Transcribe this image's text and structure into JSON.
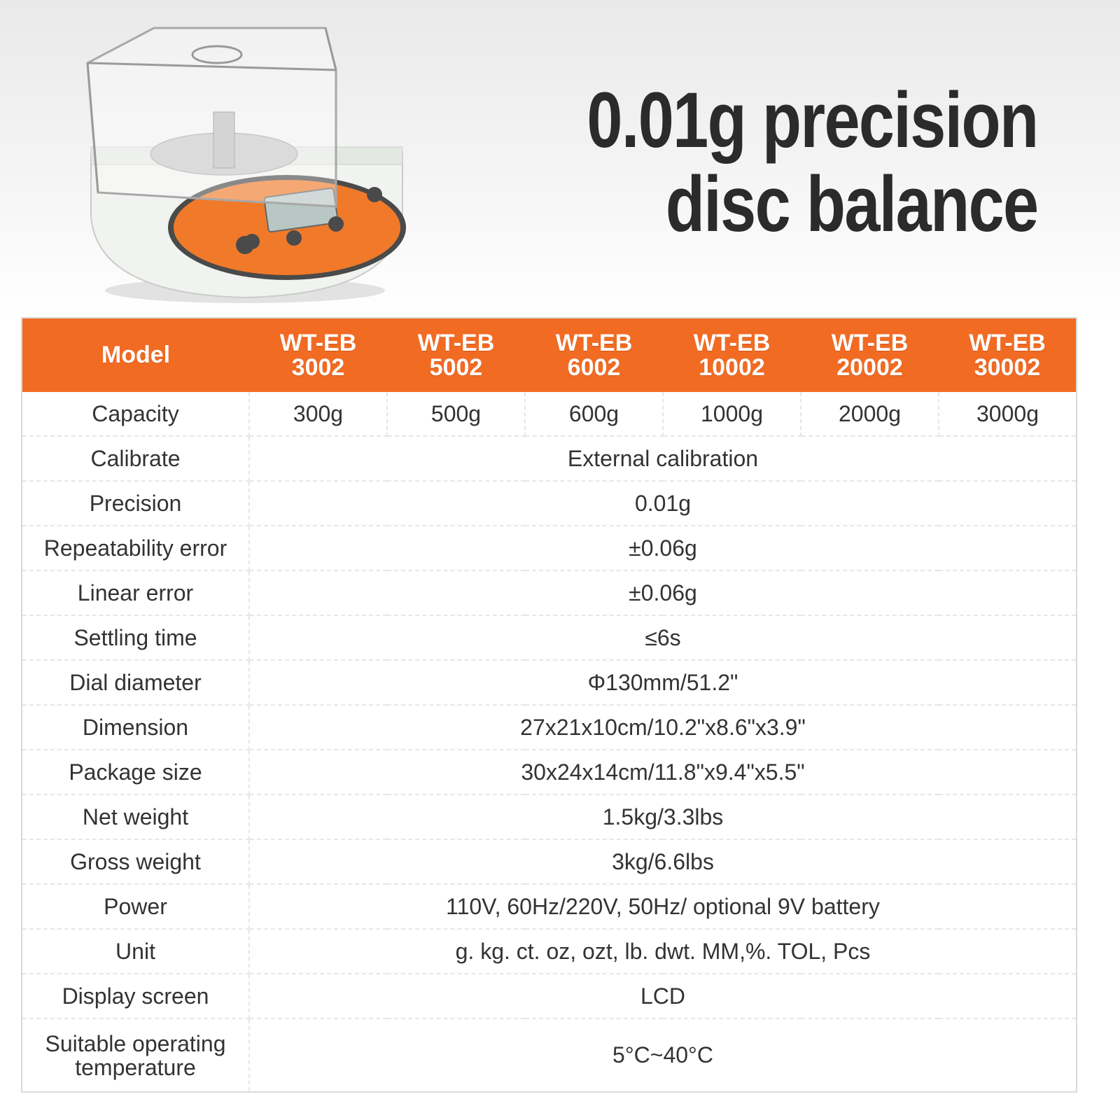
{
  "header": {
    "title_lines": [
      "0.01g precision",
      "disc balance"
    ]
  },
  "table": {
    "corner": "Model",
    "models": [
      [
        "WT-EB",
        "3002"
      ],
      [
        "WT-EB",
        "5002"
      ],
      [
        "WT-EB",
        "6002"
      ],
      [
        "WT-EB",
        "10002"
      ],
      [
        "WT-EB",
        "20002"
      ],
      [
        "WT-EB",
        "30002"
      ]
    ],
    "rows": [
      {
        "label": "Capacity",
        "values": [
          "300g",
          "500g",
          "600g",
          "1000g",
          "2000g",
          "3000g"
        ]
      },
      {
        "label": "Calibrate",
        "values": [
          "External calibration"
        ]
      },
      {
        "label": "Precision",
        "values": [
          "0.01g"
        ]
      },
      {
        "label": "Repeatability error",
        "values": [
          "±0.06g"
        ]
      },
      {
        "label": "Linear error",
        "values": [
          "±0.06g"
        ]
      },
      {
        "label": "Settling time",
        "values": [
          "≤6s"
        ]
      },
      {
        "label": "Dial diameter",
        "values": [
          "Φ130mm/51.2\""
        ]
      },
      {
        "label": "Dimension",
        "values": [
          "27x21x10cm/10.2\"x8.6\"x3.9\""
        ]
      },
      {
        "label": "Package size",
        "values": [
          "30x24x14cm/11.8\"x9.4\"x5.5\""
        ]
      },
      {
        "label": "Net weight",
        "values": [
          "1.5kg/3.3lbs"
        ]
      },
      {
        "label": "Gross weight",
        "values": [
          "3kg/6.6lbs"
        ]
      },
      {
        "label": "Power",
        "values": [
          "110V, 60Hz/220V, 50Hz/ optional 9V battery"
        ]
      },
      {
        "label": "Unit",
        "values": [
          "g. kg. ct. oz, ozt, lb. dwt. MM,%. TOL, Pcs"
        ]
      },
      {
        "label": "Display screen",
        "values": [
          "LCD"
        ]
      },
      {
        "label": "Suitable operating temperature",
        "values": [
          "5°C~40°C"
        ]
      }
    ]
  }
}
